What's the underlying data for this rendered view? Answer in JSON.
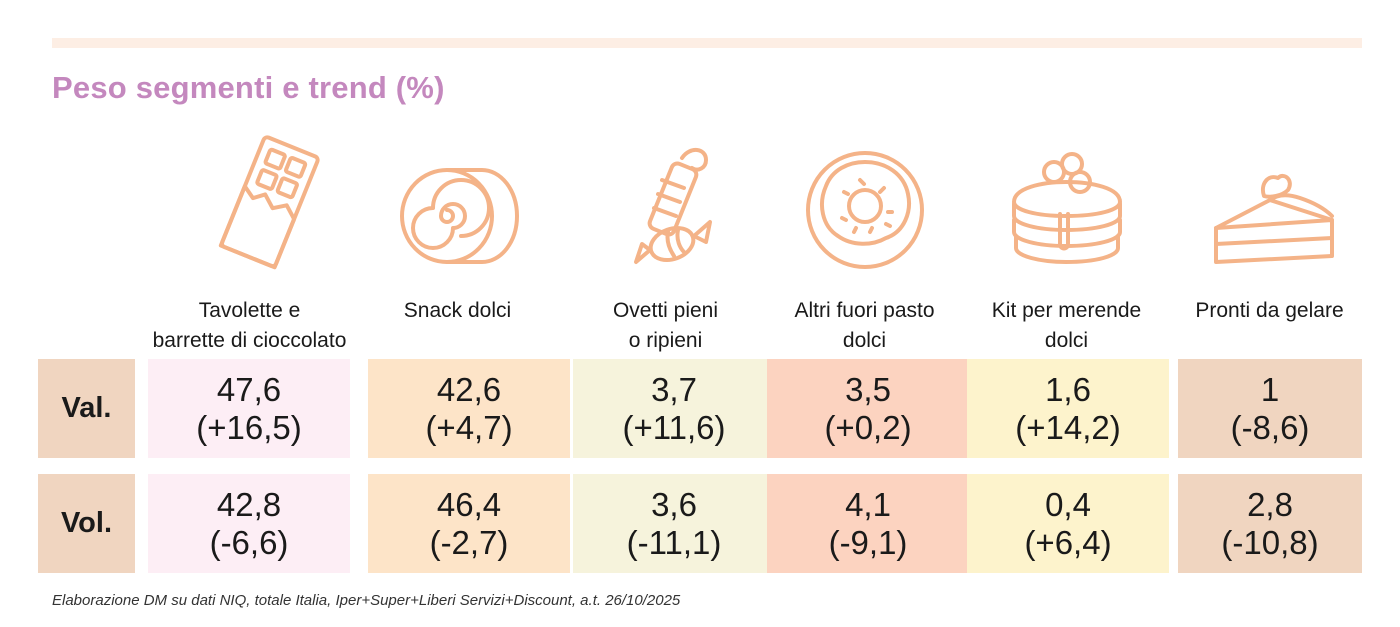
{
  "title": "Peso segmenti e trend (%)",
  "source": "Elaborazione DM su dati NIQ, totale Italia, Iper+Super+Liberi Servizi+Discount, a.t. 26/10/2025",
  "colors": {
    "title": "#c488be",
    "icon_stroke": "#f4b388",
    "row_header_bg": "#f0d5c0",
    "top_band": "#fdeee4"
  },
  "chart_data": {
    "type": "table",
    "title": "Peso segmenti e trend (%)",
    "row_labels": [
      "Val.",
      "Vol."
    ],
    "columns": [
      {
        "label": "Tavolette e\nbarrette di cioccolato",
        "icon": "chocolate-bar-icon",
        "color": "#fdeef5",
        "val": {
          "value": "47,6",
          "trend": "(+16,5)"
        },
        "vol": {
          "value": "42,8",
          "trend": "(-6,6)"
        }
      },
      {
        "label": "Snack dolci",
        "icon": "swiss-roll-icon",
        "color": "#fde4c8",
        "val": {
          "value": "42,6",
          "trend": "(+4,7)"
        },
        "vol": {
          "value": "46,4",
          "trend": "(-2,7)"
        }
      },
      {
        "label": "Ovetti pieni\no ripieni",
        "icon": "candy-icon",
        "color": "#f6f3dc",
        "val": {
          "value": "3,7",
          "trend": "(+11,6)"
        },
        "vol": {
          "value": "3,6",
          "trend": "(-11,1)"
        }
      },
      {
        "label": "Altri fuori pasto\ndolci",
        "icon": "donut-icon",
        "color": "#fcd3c0",
        "val": {
          "value": "3,5",
          "trend": "(+0,2)"
        },
        "vol": {
          "value": "4,1",
          "trend": "(-9,1)"
        }
      },
      {
        "label": "Kit per merende\ndolci",
        "icon": "pancakes-icon",
        "color": "#fdf3cc",
        "val": {
          "value": "1,6",
          "trend": "(+14,2)"
        },
        "vol": {
          "value": "0,4",
          "trend": "(+6,4)"
        }
      },
      {
        "label": "Pronti da gelare",
        "icon": "cake-slice-icon",
        "color": "#f0d5c0",
        "val": {
          "value": "1",
          "trend": "(-8,6)"
        },
        "vol": {
          "value": "2,8",
          "trend": "(-10,8)"
        }
      }
    ]
  }
}
